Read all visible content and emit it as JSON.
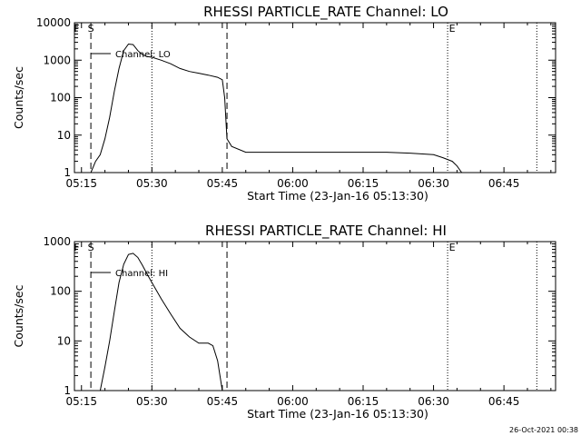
{
  "footer": "26-Oct-2021 00:38",
  "chart_data": [
    {
      "type": "line",
      "title": "RHESSI PARTICLE_RATE Channel: LO",
      "xlabel": "Start Time (23-Jan-16 05:13:30)",
      "ylabel": "Counts/sec",
      "yscale": "log",
      "xlim": [
        "05:13:30",
        "06:56:00"
      ],
      "ylim": [
        1,
        10000
      ],
      "xticks": [
        "05:15",
        "05:30",
        "05:45",
        "06:00",
        "06:15",
        "06:30",
        "06:45"
      ],
      "yticks": [
        "1",
        "10",
        "100",
        "1000",
        "10000"
      ],
      "legend": "Channel: LO",
      "markers": [
        {
          "label": "F",
          "time": "05:14:00"
        },
        {
          "label": "S",
          "time": "05:17:00"
        }
      ],
      "dashed_lines": [
        "05:17:00",
        "05:46:00"
      ],
      "dotted_lines": [
        "05:30:00",
        "06:33:00",
        "06:52:00"
      ],
      "end_marker": {
        "label": "E",
        "time": "06:33:00"
      },
      "series": [
        {
          "name": "Channel: LO",
          "x": [
            "05:17:00",
            "05:18:00",
            "05:19:00",
            "05:20:00",
            "05:21:00",
            "05:22:00",
            "05:23:00",
            "05:24:00",
            "05:25:00",
            "05:26:00",
            "05:27:00",
            "05:28:00",
            "05:29:00",
            "05:30:00",
            "05:32:00",
            "05:34:00",
            "05:36:00",
            "05:38:00",
            "05:40:00",
            "05:42:00",
            "05:44:00",
            "05:45:00",
            "05:45:30",
            "05:46:00",
            "05:47:00",
            "05:50:00",
            "05:55:00",
            "06:00:00",
            "06:05:00",
            "06:10:00",
            "06:15:00",
            "06:20:00",
            "06:25:00",
            "06:30:00",
            "06:32:00",
            "06:34:00",
            "06:35:00",
            "06:36:00"
          ],
          "y": [
            1,
            2,
            3,
            8,
            30,
            150,
            600,
            1800,
            2700,
            2600,
            1800,
            1400,
            1250,
            1200,
            1000,
            800,
            600,
            500,
            450,
            400,
            350,
            300,
            100,
            8,
            5,
            3.5,
            3.5,
            3.5,
            3.5,
            3.5,
            3.5,
            3.5,
            3.3,
            3,
            2.5,
            2,
            1.5,
            1
          ]
        }
      ]
    },
    {
      "type": "line",
      "title": "RHESSI PARTICLE_RATE Channel: HI",
      "xlabel": "Start Time (23-Jan-16 05:13:30)",
      "ylabel": "Counts/sec",
      "yscale": "log",
      "xlim": [
        "05:13:30",
        "06:56:00"
      ],
      "ylim": [
        1,
        1000
      ],
      "xticks": [
        "05:15",
        "05:30",
        "05:45",
        "06:00",
        "06:15",
        "06:30",
        "06:45"
      ],
      "yticks": [
        "1",
        "10",
        "100",
        "1000"
      ],
      "legend": "Channel: HI",
      "markers": [
        {
          "label": "F",
          "time": "05:14:00"
        },
        {
          "label": "S",
          "time": "05:17:00"
        }
      ],
      "dashed_lines": [
        "05:17:00",
        "05:46:00"
      ],
      "dotted_lines": [
        "05:30:00",
        "06:33:00",
        "06:52:00"
      ],
      "end_marker": {
        "label": "E",
        "time": "06:33:00"
      },
      "series": [
        {
          "name": "Channel: HI",
          "x": [
            "05:19:00",
            "05:20:00",
            "05:21:00",
            "05:22:00",
            "05:23:00",
            "05:24:00",
            "05:25:00",
            "05:26:00",
            "05:27:00",
            "05:28:00",
            "05:29:00",
            "05:30:00",
            "05:32:00",
            "05:34:00",
            "05:36:00",
            "05:38:00",
            "05:40:00",
            "05:42:00",
            "05:43:00",
            "05:44:00",
            "05:45:00"
          ],
          "y": [
            1,
            3,
            10,
            40,
            150,
            350,
            550,
            580,
            480,
            330,
            220,
            150,
            70,
            35,
            18,
            12,
            9,
            9,
            8,
            4,
            1
          ]
        }
      ]
    }
  ]
}
